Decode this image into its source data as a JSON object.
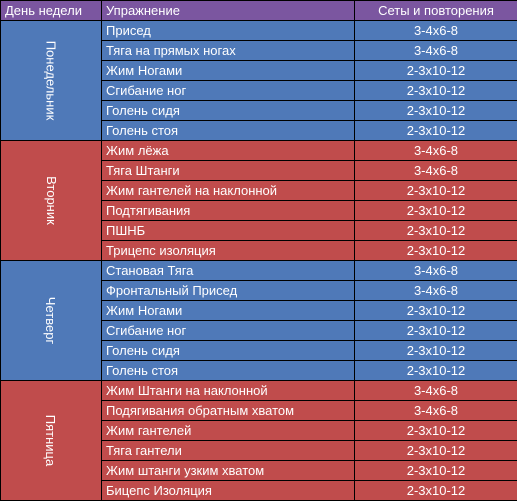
{
  "header": {
    "day": "День недели",
    "exercise": "Упражнение",
    "sets": "Сеты и повторения"
  },
  "colors": {
    "header": "#7b56a0",
    "blue": "#4f79b8",
    "red": "#c04c4c"
  },
  "days": [
    {
      "name": "Понедельник",
      "rows": [
        {
          "exercise": "Присед",
          "sets": "3-4x6-8"
        },
        {
          "exercise": "Тяга на прямых ногах",
          "sets": "3-4x6-8"
        },
        {
          "exercise": "Жим Ногами",
          "sets": "2-3x10-12"
        },
        {
          "exercise": "Сгибание ног",
          "sets": "2-3x10-12"
        },
        {
          "exercise": "Голень сидя",
          "sets": "2-3x10-12"
        },
        {
          "exercise": "Голень стоя",
          "sets": "2-3x10-12"
        }
      ]
    },
    {
      "name": "Вторник",
      "rows": [
        {
          "exercise": "Жим лёжа",
          "sets": "3-4x6-8"
        },
        {
          "exercise": "Тяга Штанги",
          "sets": "3-4x6-8"
        },
        {
          "exercise": "Жим гантелей на наклонной",
          "sets": "2-3x10-12"
        },
        {
          "exercise": "Подтягивания",
          "sets": "2-3x10-12"
        },
        {
          "exercise": "ПШНБ",
          "sets": "2-3x10-12"
        },
        {
          "exercise": "Трицепс изоляция",
          "sets": "2-3x10-12"
        }
      ]
    },
    {
      "name": "Четверг",
      "rows": [
        {
          "exercise": "Становая Тяга",
          "sets": "3-4x6-8"
        },
        {
          "exercise": "Фронтальный Присед",
          "sets": "3-4x6-8"
        },
        {
          "exercise": "Жим Ногами",
          "sets": "2-3x10-12"
        },
        {
          "exercise": "Сгибание ног",
          "sets": "2-3x10-12"
        },
        {
          "exercise": "Голень сидя",
          "sets": "2-3x10-12"
        },
        {
          "exercise": "Голень стоя",
          "sets": "2-3x10-12"
        }
      ]
    },
    {
      "name": "Пятница",
      "rows": [
        {
          "exercise": "Жим Штанги на наклонной",
          "sets": "3-4x6-8"
        },
        {
          "exercise": "Подягивания обратным хватом",
          "sets": "3-4x6-8"
        },
        {
          "exercise": "Жим гантелей",
          "sets": "2-3x10-12"
        },
        {
          "exercise": "Тяга гантели",
          "sets": "2-3x10-12"
        },
        {
          "exercise": "Жим штанги узким хватом",
          "sets": "2-3x10-12"
        },
        {
          "exercise": "Бицепс Изоляция",
          "sets": "2-3x10-12"
        }
      ]
    }
  ]
}
